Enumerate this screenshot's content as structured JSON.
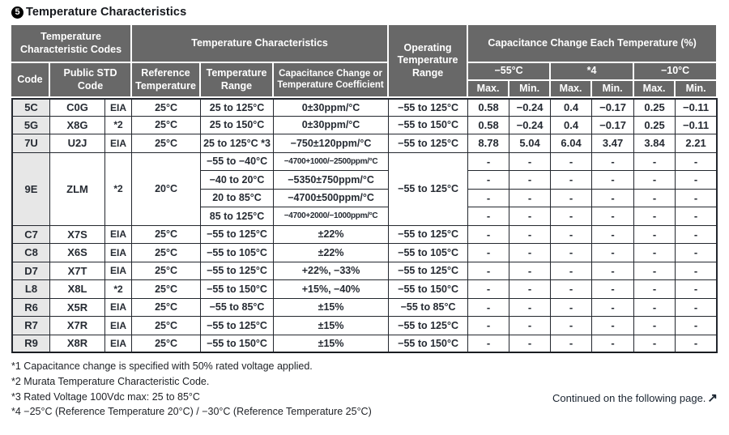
{
  "page": {
    "title_badge": "5",
    "title": "Temperature Characteristics"
  },
  "table": {
    "headers": {
      "group_codes": "Temperature Characteristic Codes",
      "group_characteristics": "Temperature Characteristics",
      "operating": "Operating Temperature Range",
      "group_cap_change": "Capacitance Change Each Temperature (%)",
      "code": "Code",
      "public_std": "Public STD Code",
      "reference": "Reference Temperature",
      "temp_range": "Temperature Range",
      "cap_change": "Capacitance Change or Temperature Coefficient",
      "temp_cols": [
        "−55°C",
        "*4",
        "−10°C"
      ],
      "max": "Max.",
      "min": "Min."
    },
    "rows": [
      {
        "code": "5C",
        "std": "C0G",
        "org": "EIA",
        "ref": "25°C",
        "range": "25 to 125°C",
        "coef": "0±30ppm/°C",
        "op": "−55 to 125°C",
        "vals": [
          "0.58",
          "−0.24",
          "0.4",
          "−0.17",
          "0.25",
          "−0.11"
        ]
      },
      {
        "code": "5G",
        "std": "X8G",
        "org": "*2",
        "ref": "25°C",
        "range": "25 to 150°C",
        "coef": "0±30ppm/°C",
        "op": "−55 to 150°C",
        "vals": [
          "0.58",
          "−0.24",
          "0.4",
          "−0.17",
          "0.25",
          "−0.11"
        ]
      },
      {
        "code": "7U",
        "std": "U2J",
        "org": "EIA",
        "ref": "25°C",
        "range": "25 to 125°C *3",
        "coef": "−750±120ppm/°C",
        "op": "−55 to 125°C",
        "vals": [
          "8.78",
          "5.04",
          "6.04",
          "3.47",
          "3.84",
          "2.21"
        ]
      },
      {
        "code": "9E",
        "std": "ZLM",
        "org": "*2",
        "ref": "20°C",
        "op": "−55 to 125°C",
        "sub": [
          {
            "range": "−55 to −40°C",
            "coef": "−4700+1000/−2500ppm/°C",
            "vals": [
              "-",
              "-",
              "-",
              "-",
              "-",
              "-"
            ]
          },
          {
            "range": "−40 to 20°C",
            "coef": "−5350±750ppm/°C",
            "vals": [
              "-",
              "-",
              "-",
              "-",
              "-",
              "-"
            ]
          },
          {
            "range": "20 to 85°C",
            "coef": "−4700±500ppm/°C",
            "vals": [
              "-",
              "-",
              "-",
              "-",
              "-",
              "-"
            ]
          },
          {
            "range": "85 to 125°C",
            "coef": "−4700+2000/−1000ppm/°C",
            "vals": [
              "-",
              "-",
              "-",
              "-",
              "-",
              "-"
            ]
          }
        ]
      },
      {
        "code": "C7",
        "std": "X7S",
        "org": "EIA",
        "ref": "25°C",
        "range": "−55 to 125°C",
        "coef": "±22%",
        "op": "−55 to 125°C",
        "vals": [
          "-",
          "-",
          "-",
          "-",
          "-",
          "-"
        ]
      },
      {
        "code": "C8",
        "std": "X6S",
        "org": "EIA",
        "ref": "25°C",
        "range": "−55 to 105°C",
        "coef": "±22%",
        "op": "−55 to 105°C",
        "vals": [
          "-",
          "-",
          "-",
          "-",
          "-",
          "-"
        ]
      },
      {
        "code": "D7",
        "std": "X7T",
        "org": "EIA",
        "ref": "25°C",
        "range": "−55 to 125°C",
        "coef": "+22%, −33%",
        "op": "−55 to 125°C",
        "vals": [
          "-",
          "-",
          "-",
          "-",
          "-",
          "-"
        ]
      },
      {
        "code": "L8",
        "std": "X8L",
        "org": "*2",
        "ref": "25°C",
        "range": "−55 to 150°C",
        "coef": "+15%, −40%",
        "op": "−55 to 150°C",
        "vals": [
          "-",
          "-",
          "-",
          "-",
          "-",
          "-"
        ]
      },
      {
        "code": "R6",
        "std": "X5R",
        "org": "EIA",
        "ref": "25°C",
        "range": "−55 to 85°C",
        "coef": "±15%",
        "op": "−55 to 85°C",
        "vals": [
          "-",
          "-",
          "-",
          "-",
          "-",
          "-"
        ]
      },
      {
        "code": "R7",
        "std": "X7R",
        "org": "EIA",
        "ref": "25°C",
        "range": "−55 to 125°C",
        "coef": "±15%",
        "op": "−55 to 125°C",
        "vals": [
          "-",
          "-",
          "-",
          "-",
          "-",
          "-"
        ]
      },
      {
        "code": "R9",
        "std": "X8R",
        "org": "EIA",
        "ref": "25°C",
        "range": "−55 to 150°C",
        "coef": "±15%",
        "op": "−55 to 150°C",
        "vals": [
          "-",
          "-",
          "-",
          "-",
          "-",
          "-"
        ]
      }
    ]
  },
  "footnotes": [
    "*1 Capacitance change is specified with 50% rated voltage applied.",
    "*2 Murata Temperature Characteristic Code.",
    "*3 Rated Voltage 100Vdc max: 25 to 85°C",
    "*4 −25°C (Reference Temperature 20°C) / −30°C (Reference Temperature 25°C)"
  ],
  "continued": {
    "label": "Continued on the following page.",
    "arrow": "↗"
  },
  "colors": {
    "header_bg": "#686868",
    "code_col_bg": "#e7e7e7",
    "border": "#23272e",
    "header_text": "#ffffff"
  }
}
